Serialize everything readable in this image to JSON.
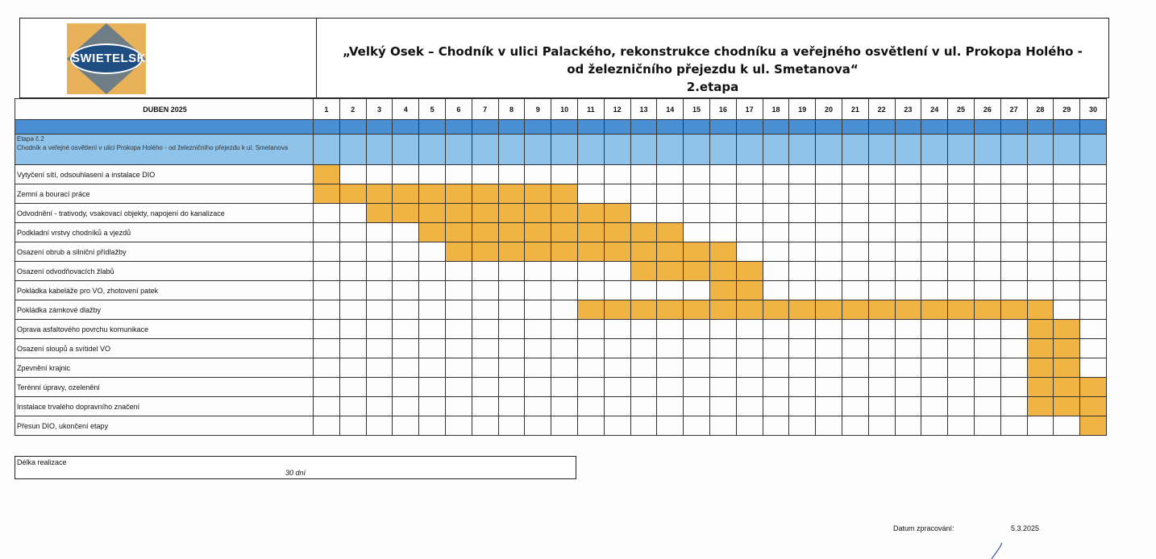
{
  "logo_text": "SWIETELSKY",
  "title": {
    "line1": "„Velký Osek – Chodník v ulici Palackého, rekonstrukce chodníku a veřejného osvětlení v ul. Prokopa Holého -",
    "line2": "od železničního přejezdu k ul. Smetanova“",
    "line3": "2.etapa"
  },
  "table": {
    "month": "DUBEN 2025",
    "days": [
      "1",
      "2",
      "3",
      "4",
      "5",
      "6",
      "7",
      "8",
      "9",
      "10",
      "11",
      "12",
      "13",
      "14",
      "15",
      "16",
      "17",
      "18",
      "19",
      "20",
      "21",
      "22",
      "23",
      "24",
      "25",
      "26",
      "27",
      "28",
      "29",
      "30"
    ],
    "stage_label": "Etapa č.2\nChodník a veřejné osvětlení v ulici Prokopa Holého - od železničního přejezdu k ul. Smetanova",
    "tasks": [
      {
        "name": "Vytyčení sítí, odsouhlasení a instalace DIO",
        "start": 1,
        "end": 1
      },
      {
        "name": "Zemní a bourací práce",
        "start": 1,
        "end": 10
      },
      {
        "name": "Odvodnění - trativody, vsakovací objekty, napojení do kanalizace",
        "start": 3,
        "end": 12
      },
      {
        "name": "Podkladní vrstvy chodníků a vjezdů",
        "start": 5,
        "end": 14
      },
      {
        "name": "Osazení obrub a silniční přídlažby",
        "start": 6,
        "end": 16
      },
      {
        "name": "Osazení odvodňovacích žlabů",
        "start": 13,
        "end": 17
      },
      {
        "name": "Pokládka kabeláže pro VO, zhotovení patek",
        "start": 16,
        "end": 17
      },
      {
        "name": "Pokládka zámkové dlažby",
        "start": 11,
        "end": 28
      },
      {
        "name": "Oprava asfaltového povrchu komunikace",
        "start": 28,
        "end": 29
      },
      {
        "name": "Osazení sloupů a svítidel VO",
        "start": 28,
        "end": 29
      },
      {
        "name": "Zpevnění krajnic",
        "start": 28,
        "end": 29
      },
      {
        "name": "Terénní úpravy, ozelenění",
        "start": 28,
        "end": 30
      },
      {
        "name": "Instalace trvalého dopravního značení",
        "start": 28,
        "end": 30
      },
      {
        "name": "Přesun DIO, ukončení etapy",
        "start": 30,
        "end": 30
      }
    ]
  },
  "duration": {
    "label": "Délka realizace",
    "value": "30 dní"
  },
  "footer": {
    "date_label": "Datum zpracování:",
    "date_value": "5.3.2025"
  },
  "colors": {
    "bar": "#f0b444",
    "header_blue": "#4a8fd4",
    "stage_blue": "#8fc3ea"
  }
}
